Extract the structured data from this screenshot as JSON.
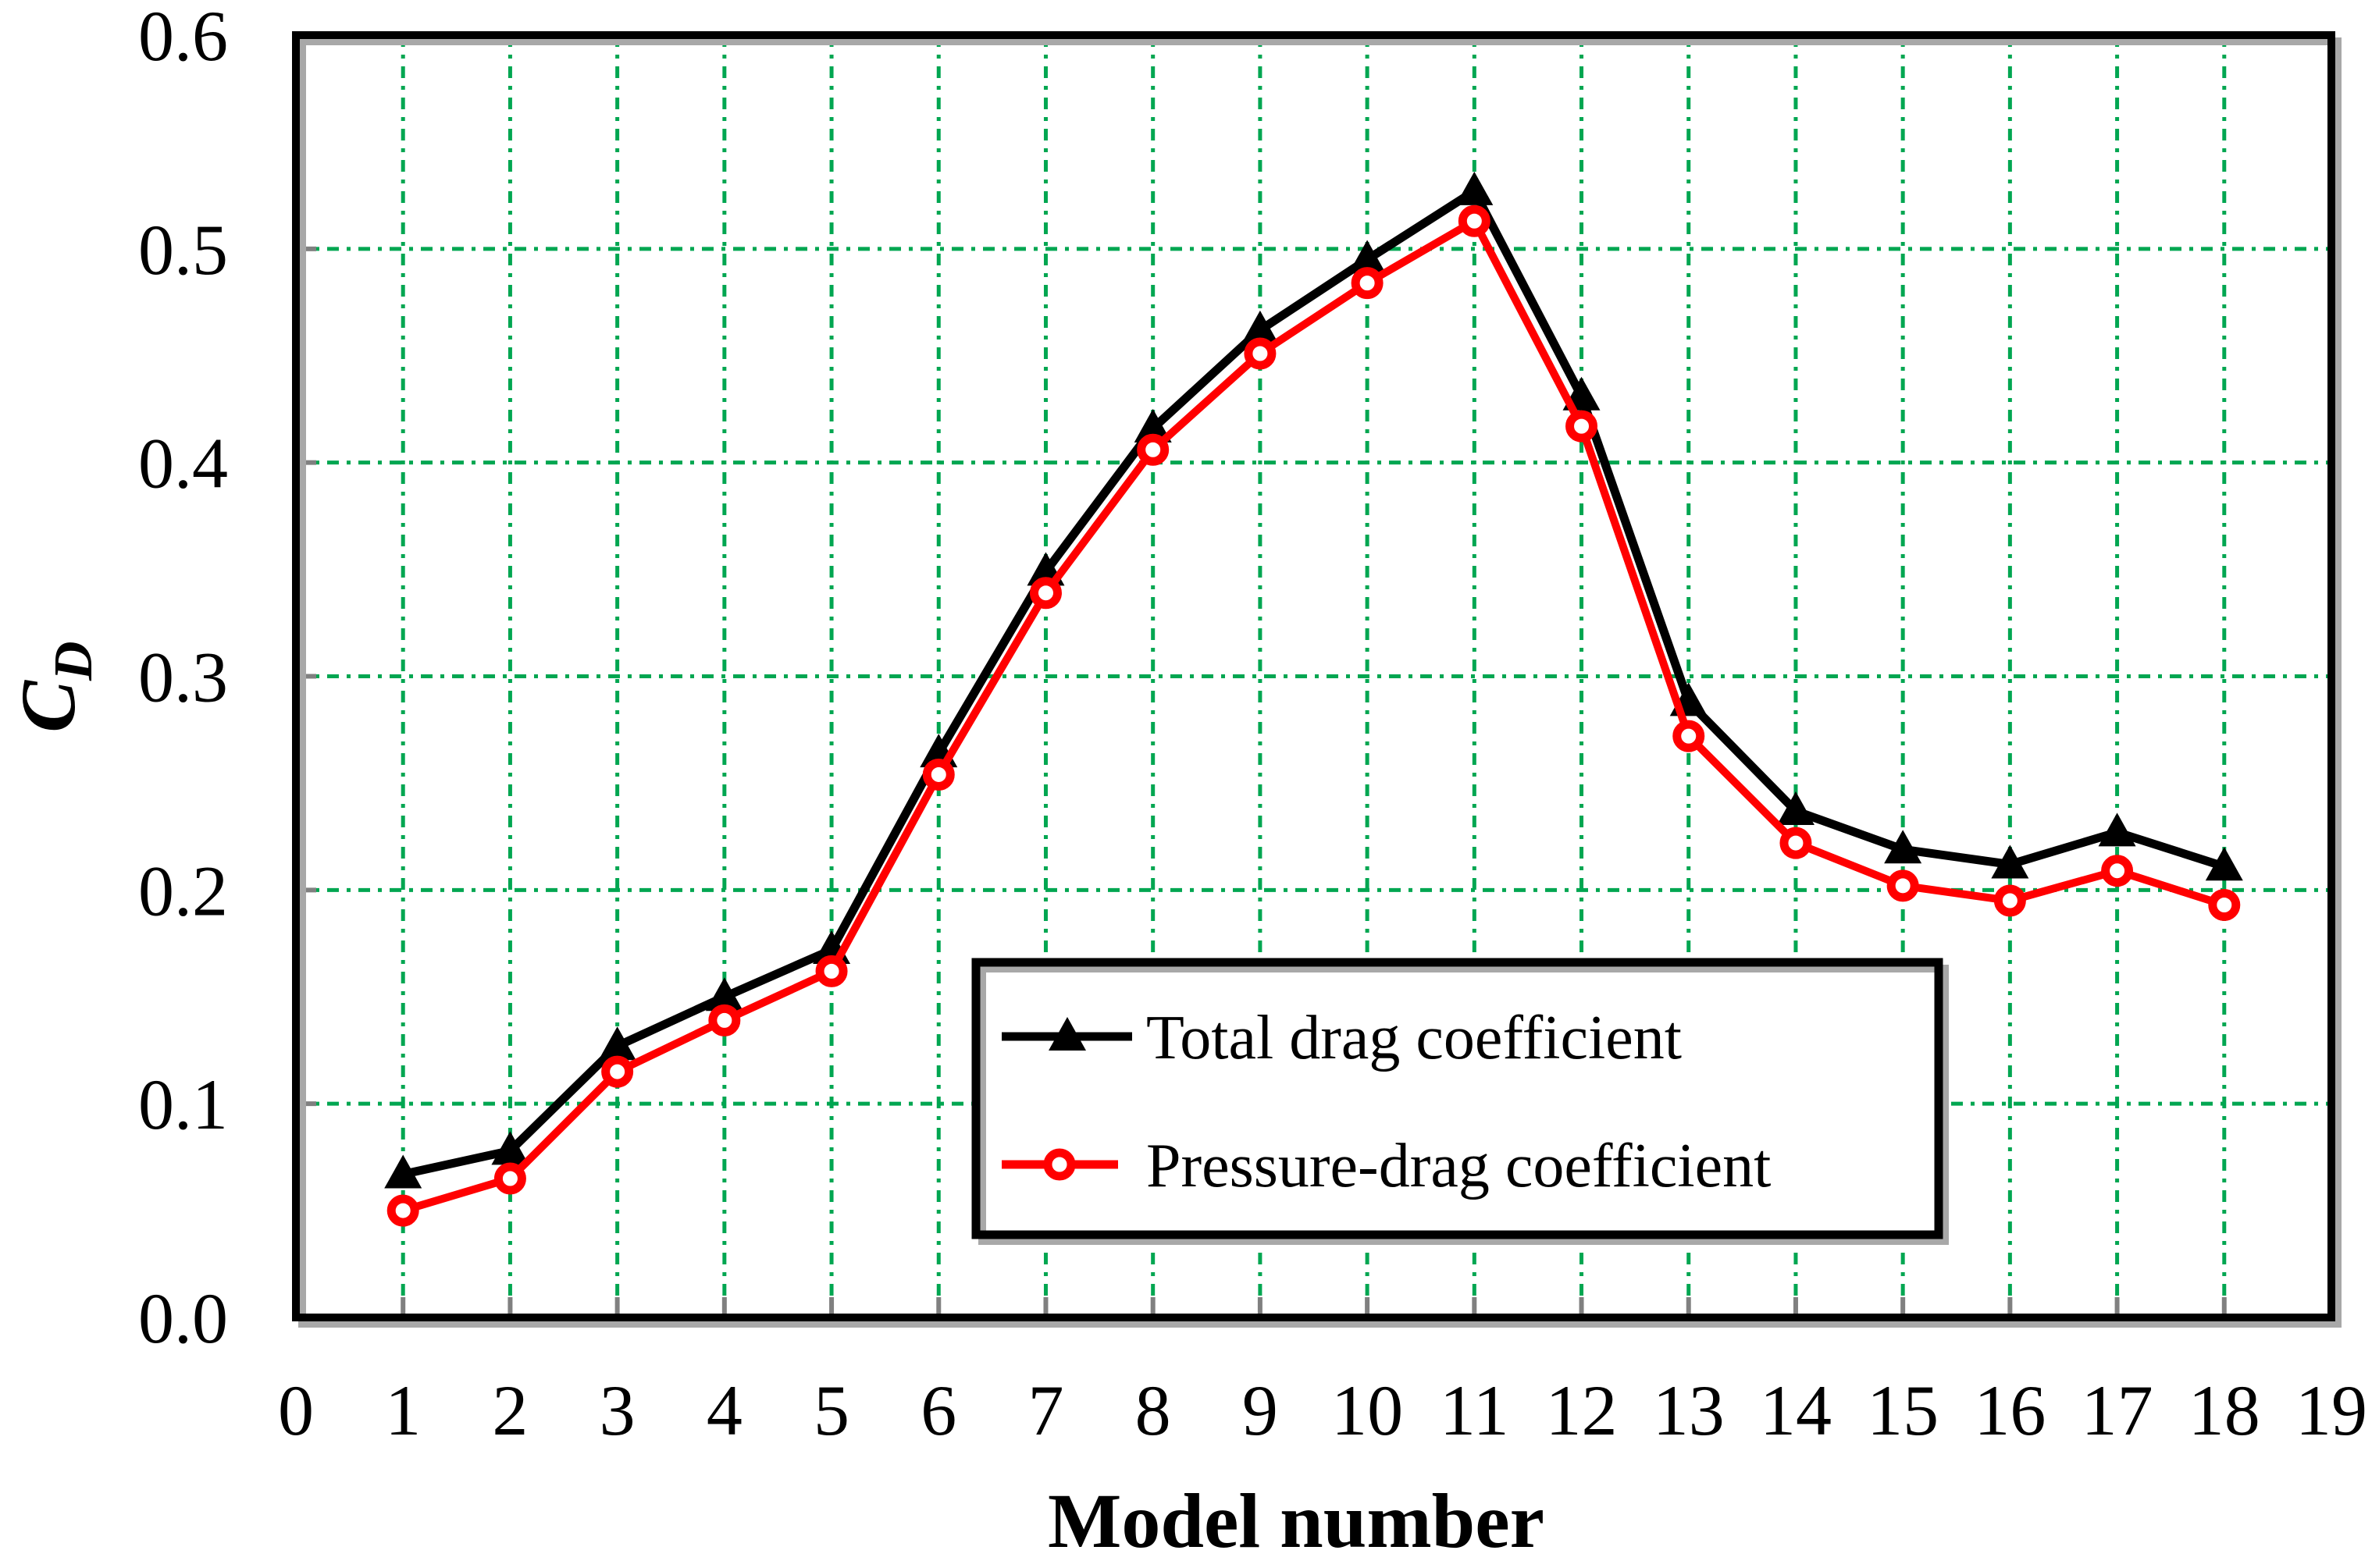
{
  "chart_data": {
    "type": "line",
    "xlabel": "Model number",
    "ylabel": "C_D",
    "ylabel_parts": {
      "main": "C",
      "sub": "D"
    },
    "xlim": [
      0,
      19
    ],
    "ylim": [
      0.0,
      0.6
    ],
    "x_tick_labels": [
      "0",
      "1",
      "2",
      "3",
      "4",
      "5",
      "6",
      "7",
      "8",
      "9",
      "10",
      "11",
      "12",
      "13",
      "14",
      "15",
      "16",
      "17",
      "18",
      "19"
    ],
    "x_tick_values": [
      0,
      1,
      2,
      3,
      4,
      5,
      6,
      7,
      8,
      9,
      10,
      11,
      12,
      13,
      14,
      15,
      16,
      17,
      18,
      19
    ],
    "y_tick_labels": [
      "0.0",
      "0.1",
      "0.2",
      "0.3",
      "0.4",
      "0.5",
      "0.6"
    ],
    "y_tick_values": [
      0.0,
      0.1,
      0.2,
      0.3,
      0.4,
      0.5,
      0.6
    ],
    "grid": true,
    "grid_color": "#00A651",
    "axis_color": "#000000",
    "tick_color": "#808080",
    "shadow_color": "#a8a8a8",
    "background_color": "#ffffff",
    "legend_position": "inside-lower-middle",
    "x": [
      1,
      2,
      3,
      4,
      5,
      6,
      7,
      8,
      9,
      10,
      11,
      12,
      13,
      14,
      15,
      16,
      17,
      18
    ],
    "series": [
      {
        "name": "Total drag coefficient",
        "color": "#000000",
        "marker": "filled-triangle-up",
        "values": [
          0.067,
          0.078,
          0.127,
          0.15,
          0.172,
          0.264,
          0.349,
          0.416,
          0.462,
          0.495,
          0.527,
          0.431,
          0.288,
          0.237,
          0.219,
          0.212,
          0.227,
          0.211
        ]
      },
      {
        "name": "Pressure-drag coefficient",
        "color": "#ff0000",
        "marker": "open-circle",
        "values": [
          0.05,
          0.065,
          0.115,
          0.139,
          0.162,
          0.254,
          0.339,
          0.406,
          0.451,
          0.484,
          0.513,
          0.417,
          0.272,
          0.222,
          0.202,
          0.195,
          0.209,
          0.193
        ]
      }
    ]
  }
}
